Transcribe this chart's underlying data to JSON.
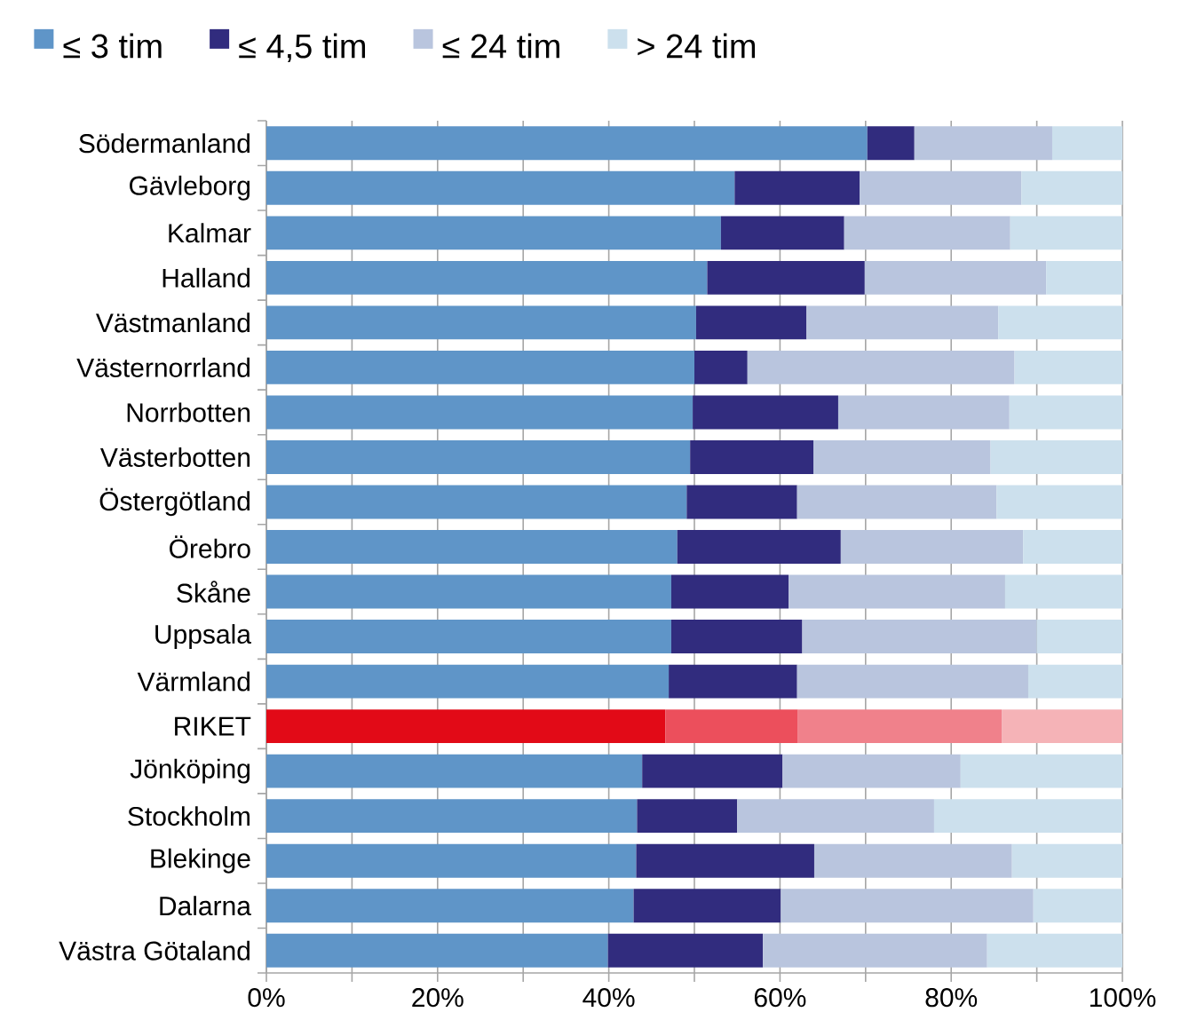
{
  "chart_data": {
    "type": "bar",
    "orientation": "horizontal",
    "stacked": true,
    "categories": [
      "Södermanland",
      "Gävleborg",
      "Kalmar",
      "Halland",
      "Västmanland",
      "Västernorrland",
      "Norrbotten",
      "Västerbotten",
      "Östergötland",
      "Örebro",
      "Skåne",
      "Uppsala",
      "Värmland",
      "RIKET",
      "Jönköping",
      "Stockholm",
      "Blekinge",
      "Dalarna",
      "Västra Götaland"
    ],
    "series": [
      {
        "name": "≤ 3 tim",
        "color": "#5f95c8",
        "colors": [
          "#5f95c8",
          "#5f95c8",
          "#5f95c8",
          "#5f95c8",
          "#5f95c8",
          "#5f95c8",
          "#5f95c8",
          "#5f95c8",
          "#5f95c8",
          "#5f95c8",
          "#5f95c8",
          "#5f95c8",
          "#5f95c8",
          "#e20a17",
          "#5f95c8",
          "#5f95c8",
          "#5f95c8",
          "#5f95c8",
          "#5f95c8"
        ],
        "values": [
          70.2,
          54.7,
          53.1,
          51.5,
          50.2,
          50.0,
          49.8,
          49.5,
          49.1,
          48.0,
          47.3,
          47.3,
          47.0,
          46.6,
          43.9,
          43.3,
          43.2,
          42.9,
          39.9
        ]
      },
      {
        "name": "≤ 4,5 tim",
        "color": "#312c7e",
        "colors": [
          "#312c7e",
          "#312c7e",
          "#312c7e",
          "#312c7e",
          "#312c7e",
          "#312c7e",
          "#312c7e",
          "#312c7e",
          "#312c7e",
          "#312c7e",
          "#312c7e",
          "#312c7e",
          "#312c7e",
          "#ec4f5c",
          "#312c7e",
          "#312c7e",
          "#312c7e",
          "#312c7e",
          "#312c7e"
        ],
        "values": [
          5.5,
          14.6,
          14.4,
          18.4,
          12.9,
          6.2,
          17.0,
          14.4,
          12.9,
          19.1,
          13.7,
          15.3,
          15.0,
          15.5,
          16.4,
          11.7,
          20.8,
          17.2,
          18.1
        ]
      },
      {
        "name": "≤ 24 tim",
        "color": "#b9c5de",
        "colors": [
          "#b9c5de",
          "#b9c5de",
          "#b9c5de",
          "#b9c5de",
          "#b9c5de",
          "#b9c5de",
          "#b9c5de",
          "#b9c5de",
          "#b9c5de",
          "#b9c5de",
          "#b9c5de",
          "#b9c5de",
          "#b9c5de",
          "#f0818b",
          "#b9c5de",
          "#b9c5de",
          "#b9c5de",
          "#b9c5de",
          "#b9c5de"
        ],
        "values": [
          16.1,
          18.9,
          19.4,
          21.2,
          22.4,
          31.2,
          20.0,
          20.7,
          23.3,
          21.3,
          25.3,
          27.4,
          27.0,
          23.8,
          20.8,
          23.0,
          23.1,
          29.5,
          26.2
        ]
      },
      {
        "name": "> 24 tim",
        "color": "#cce0ed",
        "colors": [
          "#cce0ed",
          "#cce0ed",
          "#cce0ed",
          "#cce0ed",
          "#cce0ed",
          "#cce0ed",
          "#cce0ed",
          "#cce0ed",
          "#cce0ed",
          "#cce0ed",
          "#cce0ed",
          "#cce0ed",
          "#cce0ed",
          "#f5b3b7",
          "#cce0ed",
          "#cce0ed",
          "#cce0ed",
          "#cce0ed",
          "#cce0ed"
        ],
        "values": [
          8.2,
          11.8,
          13.1,
          8.9,
          14.5,
          12.6,
          13.2,
          15.4,
          14.7,
          11.6,
          13.7,
          10.0,
          11.0,
          14.1,
          18.9,
          22.0,
          12.9,
          10.4,
          15.8
        ]
      }
    ],
    "xlim": [
      0,
      100
    ],
    "xticks": [
      {
        "value": 0,
        "label": "0%"
      },
      {
        "value": 10,
        "label": null
      },
      {
        "value": 20,
        "label": "20%"
      },
      {
        "value": 30,
        "label": null
      },
      {
        "value": 40,
        "label": "40%"
      },
      {
        "value": 50,
        "label": null
      },
      {
        "value": 60,
        "label": "60%"
      },
      {
        "value": 70,
        "label": null
      },
      {
        "value": 80,
        "label": "80%"
      },
      {
        "value": 90,
        "label": null
      },
      {
        "value": 100,
        "label": "100%"
      }
    ],
    "grid": "x",
    "legend": "top"
  }
}
